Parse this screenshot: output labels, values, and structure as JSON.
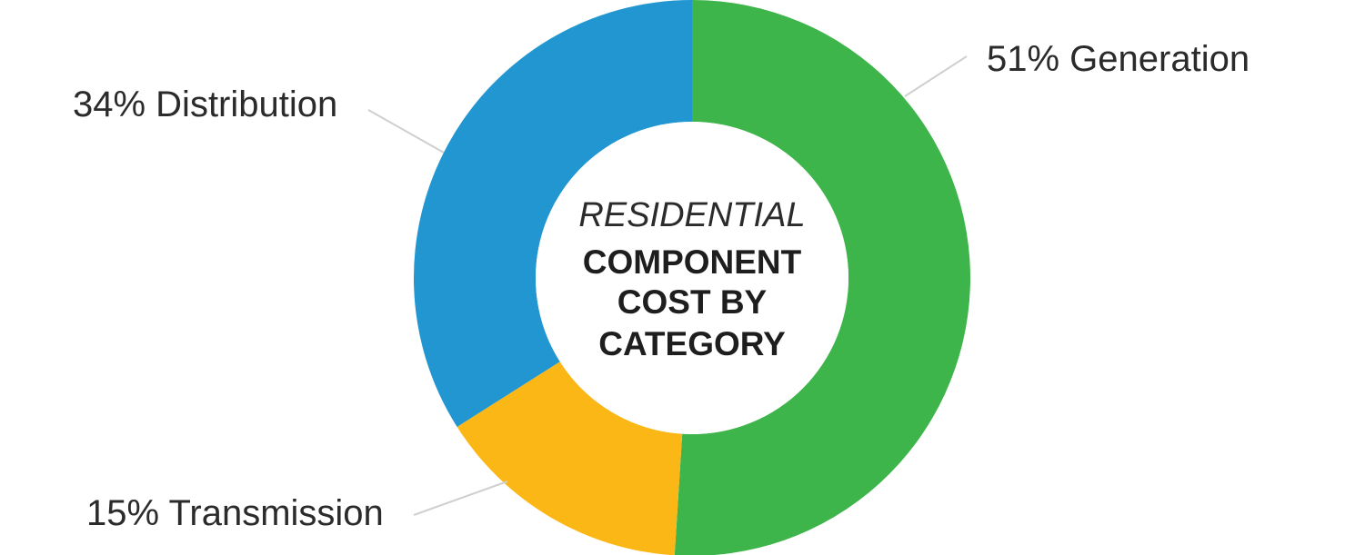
{
  "chart_data": {
    "type": "pie",
    "variant": "donut",
    "title": "RESIDENTIAL",
    "subtitle": [
      "COMPONENT",
      "COST BY",
      "CATEGORY"
    ],
    "slices": [
      {
        "label": "51% Generation",
        "name": "Generation",
        "value": 51,
        "color": "#3db54a"
      },
      {
        "label": "15% Transmission",
        "name": "Transmission",
        "value": 15,
        "color": "#fbb716"
      },
      {
        "label": "34% Distribution",
        "name": "Distribution",
        "value": 34,
        "color": "#2196d1"
      }
    ],
    "start_angle": "12 o'clock",
    "direction": "clockwise"
  }
}
